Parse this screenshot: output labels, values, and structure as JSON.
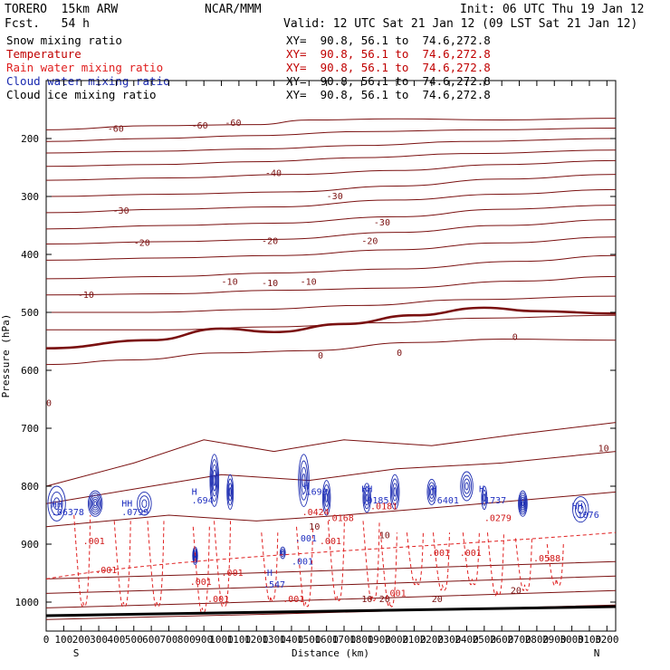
{
  "header": {
    "model": "TORERO  15km ARW",
    "forecast": "Fcst.   54 h",
    "center": "NCAR/MMM",
    "init": "Init: 06 UTC Thu 19 Jan 12",
    "valid": "Valid: 12 UTC Sat 21 Jan 12 (09 LST Sat 21 Jan 12)"
  },
  "fields": [
    {
      "name": "Snow mixing ratio",
      "xy": "XY=  90.8, 56.1 to  74.6,272.8",
      "color": "#000000",
      "xycolor": "#000000"
    },
    {
      "name": "Temperature",
      "xy": "XY=  90.8, 56.1 to  74.6,272.8",
      "color": "#c00000",
      "xycolor": "#c00000"
    },
    {
      "name": "Rain water mixing ratio",
      "xy": "XY=  90.8, 56.1 to  74.6,272.8",
      "color": "#e02020",
      "xycolor": "#c00000"
    },
    {
      "name": "Cloud water mixing ratio",
      "xy": "XY=  90.8, 56.1 to  74.6,272.8",
      "color": "#1a2ab0",
      "xycolor": "#000000"
    },
    {
      "name": "Cloud ice mixing ratio",
      "xy": "XY=  90.8, 56.1 to  74.6,272.8",
      "color": "#000000",
      "xycolor": "#000000"
    }
  ],
  "colors": {
    "temperature": "#7a1010",
    "rain": "#e02020",
    "cloud": "#1a2ab0",
    "frame": "#000000"
  },
  "chart_data": {
    "type": "contour-cross-section",
    "xlabel": "Distance (km)",
    "ylabel": "Pressure (hPa)",
    "xlim": [
      0,
      3250
    ],
    "ylim": [
      1050,
      100
    ],
    "x_ticks": [
      "0",
      "100",
      "200",
      "300",
      "400",
      "500",
      "600",
      "700",
      "800",
      "900",
      "1000",
      "1100",
      "1200",
      "1300",
      "1400",
      "1500",
      "1600",
      "1700",
      "1800",
      "1900",
      "2000",
      "2100",
      "2200",
      "2300",
      "2400",
      "2500",
      "2600",
      "2700",
      "2800",
      "2900",
      "3000",
      "3100",
      "3200"
    ],
    "x_tick_values": [
      0,
      100,
      200,
      300,
      400,
      500,
      600,
      700,
      800,
      900,
      1000,
      1100,
      1200,
      1300,
      1400,
      1500,
      1600,
      1700,
      1800,
      1900,
      2000,
      2100,
      2200,
      2300,
      2400,
      2500,
      2600,
      2700,
      2800,
      2900,
      3000,
      3100,
      3200
    ],
    "y_ticks": [
      "200",
      "300",
      "400",
      "500",
      "600",
      "700",
      "800",
      "900",
      "1000"
    ],
    "y_tick_values": [
      200,
      300,
      400,
      500,
      600,
      700,
      800,
      900,
      1000
    ],
    "end_labels": {
      "left": "S",
      "right": "N"
    },
    "temperature_contours": [
      {
        "level": -60,
        "points": [
          [
            0,
            185
          ],
          [
            600,
            178
          ],
          [
            1200,
            176
          ],
          [
            1500,
            168
          ],
          [
            2000,
            166
          ],
          [
            2600,
            168
          ],
          [
            3250,
            165
          ]
        ]
      },
      {
        "level": -55,
        "points": [
          [
            0,
            205
          ],
          [
            600,
            200
          ],
          [
            1200,
            195
          ],
          [
            1800,
            188
          ],
          [
            2500,
            185
          ],
          [
            3250,
            182
          ]
        ]
      },
      {
        "level": -50,
        "points": [
          [
            0,
            225
          ],
          [
            600,
            222
          ],
          [
            1200,
            218
          ],
          [
            1800,
            212
          ],
          [
            2400,
            205
          ],
          [
            3250,
            200
          ]
        ]
      },
      {
        "level": -45,
        "points": [
          [
            0,
            248
          ],
          [
            600,
            245
          ],
          [
            1200,
            240
          ],
          [
            1800,
            233
          ],
          [
            2400,
            226
          ],
          [
            3250,
            220
          ]
        ]
      },
      {
        "level": -40,
        "points": [
          [
            0,
            272
          ],
          [
            700,
            268
          ],
          [
            1400,
            262
          ],
          [
            2000,
            255
          ],
          [
            2600,
            245
          ],
          [
            3250,
            238
          ]
        ]
      },
      {
        "level": -35,
        "points": [
          [
            0,
            300
          ],
          [
            700,
            296
          ],
          [
            1400,
            292
          ],
          [
            2000,
            282
          ],
          [
            2600,
            270
          ],
          [
            3250,
            262
          ]
        ]
      },
      {
        "level": -30,
        "points": [
          [
            0,
            328
          ],
          [
            700,
            322
          ],
          [
            1300,
            318
          ],
          [
            2000,
            306
          ],
          [
            2600,
            296
          ],
          [
            3250,
            288
          ]
        ]
      },
      {
        "level": -25,
        "points": [
          [
            0,
            356
          ],
          [
            700,
            350
          ],
          [
            1300,
            346
          ],
          [
            2000,
            335
          ],
          [
            2600,
            322
          ],
          [
            3250,
            315
          ]
        ]
      },
      {
        "level": -20,
        "points": [
          [
            0,
            382
          ],
          [
            700,
            378
          ],
          [
            1300,
            374
          ],
          [
            2000,
            362
          ],
          [
            2600,
            350
          ],
          [
            3250,
            340
          ]
        ]
      },
      {
        "level": -15,
        "points": [
          [
            0,
            410
          ],
          [
            700,
            406
          ],
          [
            1300,
            402
          ],
          [
            2000,
            392
          ],
          [
            2600,
            380
          ],
          [
            3250,
            370
          ]
        ]
      },
      {
        "level": -10,
        "points": [
          [
            0,
            442
          ],
          [
            700,
            438
          ],
          [
            1300,
            432
          ],
          [
            2000,
            425
          ],
          [
            2700,
            412
          ],
          [
            3250,
            402
          ]
        ]
      },
      {
        "level": -5,
        "points": [
          [
            0,
            470
          ],
          [
            700,
            468
          ],
          [
            1300,
            462
          ],
          [
            2000,
            458
          ],
          [
            2700,
            446
          ],
          [
            3250,
            438
          ]
        ]
      },
      {
        "level": -2,
        "points": [
          [
            0,
            500
          ],
          [
            600,
            500
          ],
          [
            1200,
            495
          ],
          [
            1800,
            488
          ],
          [
            2400,
            478
          ],
          [
            3250,
            472
          ]
        ]
      },
      {
        "level": -1,
        "points": [
          [
            0,
            530
          ],
          [
            700,
            530
          ],
          [
            1300,
            525
          ],
          [
            1900,
            518
          ],
          [
            2500,
            510
          ],
          [
            3250,
            505
          ]
        ]
      },
      {
        "level": 0,
        "points": [
          [
            0,
            562
          ],
          [
            600,
            548
          ],
          [
            1000,
            528
          ],
          [
            1300,
            534
          ],
          [
            1700,
            520
          ],
          [
            2100,
            505
          ],
          [
            2500,
            492
          ],
          [
            2800,
            498
          ],
          [
            3250,
            502
          ]
        ]
      },
      {
        "level": 5,
        "points": [
          [
            0,
            590
          ],
          [
            500,
            582
          ],
          [
            1000,
            570
          ],
          [
            1500,
            566
          ],
          [
            2100,
            552
          ],
          [
            2600,
            546
          ],
          [
            3250,
            548
          ]
        ]
      }
    ],
    "temperature_labels": [
      "-60",
      "-60",
      "-60",
      "-40",
      "-30",
      "-30",
      "-30",
      "-20",
      "-20",
      "-20",
      "-10",
      "-10",
      "-10",
      "-10",
      "0",
      "0",
      "0",
      "0",
      "10",
      "10",
      "10",
      "10",
      "20",
      "20",
      "20"
    ],
    "rain_labels": [
      ".001",
      ".001",
      ".001",
      ".001",
      ".001",
      ".001",
      ".001",
      ".001",
      ".001",
      ".001",
      ".0424",
      ".0168",
      ".0181",
      ".0279",
      ".0588"
    ],
    "cloud_labels": [
      "HH",
      ".06378",
      "HH",
      ".0799",
      "H",
      ".694",
      "H",
      ".1699",
      "HH",
      ".0185",
      "H",
      ".6401",
      "H",
      ".1737",
      "HH",
      ".1076",
      "H",
      ".547",
      ".001",
      ".001"
    ]
  }
}
